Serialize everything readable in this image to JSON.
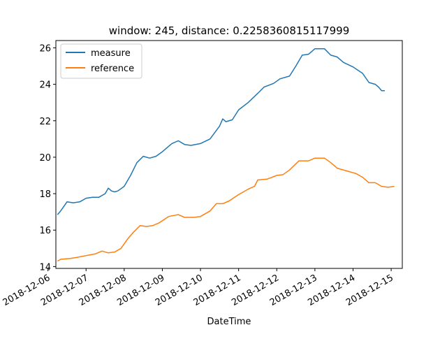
{
  "chart_data": {
    "type": "line",
    "title": "window: 245, distance: 0.2258360815117999",
    "xlabel": "DateTime",
    "ylabel": "",
    "xlim": [
      "2018-12-06 05:00",
      "2018-12-15 07:00"
    ],
    "ylim": [
      13.9,
      26.4
    ],
    "x_ticks": [
      "2018-12-06",
      "2018-12-07",
      "2018-12-08",
      "2018-12-09",
      "2018-12-10",
      "2018-12-11",
      "2018-12-12",
      "2018-12-13",
      "2018-12-14",
      "2018-12-15"
    ],
    "y_ticks": [
      14,
      16,
      18,
      20,
      22,
      24,
      26
    ],
    "y_tick_labels": [
      "14",
      "16",
      "18",
      "20",
      "22",
      "24",
      "26"
    ],
    "grid": false,
    "legend_position": "top-left",
    "series": [
      {
        "name": "measure",
        "color": "#1f77b4",
        "points": [
          [
            "2018-12-06 06:00",
            16.85
          ],
          [
            "2018-12-06 08:00",
            17.05
          ],
          [
            "2018-12-06 10:00",
            17.3
          ],
          [
            "2018-12-06 12:00",
            17.55
          ],
          [
            "2018-12-06 16:00",
            17.5
          ],
          [
            "2018-12-06 20:00",
            17.55
          ],
          [
            "2018-12-07 00:00",
            17.75
          ],
          [
            "2018-12-07 04:00",
            17.8
          ],
          [
            "2018-12-07 08:00",
            17.8
          ],
          [
            "2018-12-07 12:00",
            18.0
          ],
          [
            "2018-12-07 14:00",
            18.3
          ],
          [
            "2018-12-07 16:00",
            18.15
          ],
          [
            "2018-12-07 18:00",
            18.1
          ],
          [
            "2018-12-07 20:00",
            18.15
          ],
          [
            "2018-12-08 00:00",
            18.4
          ],
          [
            "2018-12-08 04:00",
            19.0
          ],
          [
            "2018-12-08 08:00",
            19.7
          ],
          [
            "2018-12-08 12:00",
            20.05
          ],
          [
            "2018-12-08 16:00",
            19.95
          ],
          [
            "2018-12-08 20:00",
            20.05
          ],
          [
            "2018-12-09 00:00",
            20.3
          ],
          [
            "2018-12-09 06:00",
            20.75
          ],
          [
            "2018-12-09 10:00",
            20.9
          ],
          [
            "2018-12-09 14:00",
            20.7
          ],
          [
            "2018-12-09 18:00",
            20.65
          ],
          [
            "2018-12-10 00:00",
            20.75
          ],
          [
            "2018-12-10 06:00",
            21.0
          ],
          [
            "2018-12-10 12:00",
            21.7
          ],
          [
            "2018-12-10 14:00",
            22.1
          ],
          [
            "2018-12-10 16:00",
            21.95
          ],
          [
            "2018-12-10 20:00",
            22.05
          ],
          [
            "2018-12-11 00:00",
            22.6
          ],
          [
            "2018-12-11 06:00",
            23.0
          ],
          [
            "2018-12-11 12:00",
            23.5
          ],
          [
            "2018-12-11 16:00",
            23.85
          ],
          [
            "2018-12-11 22:00",
            24.05
          ],
          [
            "2018-12-12 02:00",
            24.3
          ],
          [
            "2018-12-12 08:00",
            24.45
          ],
          [
            "2018-12-12 12:00",
            25.0
          ],
          [
            "2018-12-12 16:00",
            25.6
          ],
          [
            "2018-12-12 20:00",
            25.65
          ],
          [
            "2018-12-13 00:00",
            25.95
          ],
          [
            "2018-12-13 06:00",
            25.95
          ],
          [
            "2018-12-13 10:00",
            25.6
          ],
          [
            "2018-12-13 14:00",
            25.5
          ],
          [
            "2018-12-13 18:00",
            25.2
          ],
          [
            "2018-12-14 00:00",
            24.95
          ],
          [
            "2018-12-14 06:00",
            24.6
          ],
          [
            "2018-12-14 10:00",
            24.1
          ],
          [
            "2018-12-14 14:00",
            24.0
          ],
          [
            "2018-12-14 16:00",
            23.85
          ],
          [
            "2018-12-14 18:00",
            23.65
          ],
          [
            "2018-12-14 20:00",
            23.65
          ]
        ]
      },
      {
        "name": "reference",
        "color": "#ff7f0e",
        "points": [
          [
            "2018-12-06 06:00",
            14.3
          ],
          [
            "2018-12-06 08:00",
            14.4
          ],
          [
            "2018-12-06 14:00",
            14.45
          ],
          [
            "2018-12-06 18:00",
            14.5
          ],
          [
            "2018-12-07 00:00",
            14.6
          ],
          [
            "2018-12-07 06:00",
            14.7
          ],
          [
            "2018-12-07 10:00",
            14.85
          ],
          [
            "2018-12-07 14:00",
            14.75
          ],
          [
            "2018-12-07 18:00",
            14.8
          ],
          [
            "2018-12-07 22:00",
            15.0
          ],
          [
            "2018-12-08 02:00",
            15.5
          ],
          [
            "2018-12-08 06:00",
            15.9
          ],
          [
            "2018-12-08 10:00",
            16.25
          ],
          [
            "2018-12-08 14:00",
            16.2
          ],
          [
            "2018-12-08 18:00",
            16.25
          ],
          [
            "2018-12-08 22:00",
            16.4
          ],
          [
            "2018-12-09 04:00",
            16.75
          ],
          [
            "2018-12-09 10:00",
            16.85
          ],
          [
            "2018-12-09 14:00",
            16.7
          ],
          [
            "2018-12-09 20:00",
            16.7
          ],
          [
            "2018-12-10 00:00",
            16.75
          ],
          [
            "2018-12-10 06:00",
            17.05
          ],
          [
            "2018-12-10 10:00",
            17.45
          ],
          [
            "2018-12-10 14:00",
            17.45
          ],
          [
            "2018-12-10 18:00",
            17.6
          ],
          [
            "2018-12-11 00:00",
            17.95
          ],
          [
            "2018-12-11 06:00",
            18.25
          ],
          [
            "2018-12-11 10:00",
            18.4
          ],
          [
            "2018-12-11 12:00",
            18.75
          ],
          [
            "2018-12-11 18:00",
            18.8
          ],
          [
            "2018-12-12 00:00",
            19.0
          ],
          [
            "2018-12-12 04:00",
            19.05
          ],
          [
            "2018-12-12 08:00",
            19.3
          ],
          [
            "2018-12-12 14:00",
            19.8
          ],
          [
            "2018-12-12 20:00",
            19.8
          ],
          [
            "2018-12-13 00:00",
            19.95
          ],
          [
            "2018-12-13 06:00",
            19.95
          ],
          [
            "2018-12-13 10:00",
            19.7
          ],
          [
            "2018-12-13 14:00",
            19.4
          ],
          [
            "2018-12-13 20:00",
            19.25
          ],
          [
            "2018-12-14 02:00",
            19.1
          ],
          [
            "2018-12-14 06:00",
            18.9
          ],
          [
            "2018-12-14 10:00",
            18.6
          ],
          [
            "2018-12-14 14:00",
            18.6
          ],
          [
            "2018-12-14 18:00",
            18.4
          ],
          [
            "2018-12-14 22:00",
            18.35
          ],
          [
            "2018-12-15 02:00",
            18.4
          ]
        ]
      }
    ]
  }
}
